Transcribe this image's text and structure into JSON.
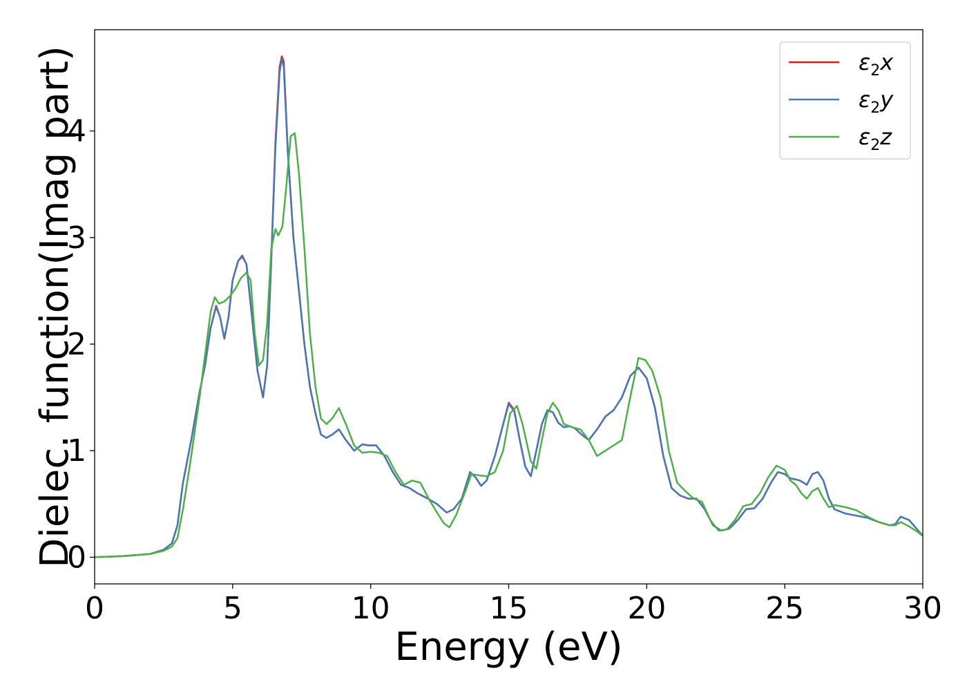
{
  "chart_data": {
    "type": "line",
    "xlabel": "Energy (eV)",
    "ylabel": "Dielec. function(Imag part)",
    "xlim": [
      0,
      30
    ],
    "ylim": [
      -0.25,
      4.95
    ],
    "xticks": [
      0,
      5,
      10,
      15,
      20,
      25,
      30
    ],
    "yticks": [
      0,
      1,
      2,
      3,
      4
    ],
    "grid": false,
    "legend_position": "top-right",
    "series": [
      {
        "name": "ε₂x",
        "legend_main": "ε",
        "legend_sub": "2",
        "legend_var": "x",
        "color": "#e41a1c",
        "x": [
          0,
          1,
          2,
          2.5,
          2.8,
          3.0,
          3.2,
          3.5,
          3.8,
          4.0,
          4.2,
          4.4,
          4.55,
          4.7,
          4.85,
          5.0,
          5.2,
          5.35,
          5.5,
          5.7,
          5.9,
          6.1,
          6.25,
          6.4,
          6.55,
          6.7,
          6.78,
          6.85,
          7.0,
          7.2,
          7.4,
          7.6,
          7.8,
          8.0,
          8.2,
          8.4,
          8.6,
          8.85,
          9.1,
          9.4,
          9.7,
          9.9,
          10.2,
          10.5,
          10.8,
          11.1,
          11.4,
          11.7,
          12.0,
          12.4,
          12.75,
          13.0,
          13.3,
          13.6,
          13.8,
          14.0,
          14.2,
          14.5,
          14.75,
          15.0,
          15.2,
          15.4,
          15.6,
          15.8,
          16.0,
          16.2,
          16.4,
          16.6,
          16.8,
          17.0,
          17.2,
          17.4,
          17.6,
          17.9,
          18.2,
          18.5,
          18.8,
          19.1,
          19.4,
          19.7,
          20.0,
          20.3,
          20.6,
          20.9,
          21.2,
          21.5,
          21.8,
          22.1,
          22.4,
          22.7,
          23.0,
          23.3,
          23.6,
          23.9,
          24.2,
          24.5,
          24.75,
          25.0,
          25.2,
          25.4,
          25.55,
          25.8,
          26.0,
          26.2,
          26.4,
          26.6,
          26.8,
          27.2,
          27.6,
          28.0,
          28.4,
          28.8,
          29.0,
          29.2,
          29.5,
          29.8,
          30.0
        ],
        "values": [
          0.0,
          0.01,
          0.03,
          0.07,
          0.13,
          0.3,
          0.7,
          1.1,
          1.55,
          1.8,
          2.15,
          2.36,
          2.25,
          2.05,
          2.25,
          2.6,
          2.78,
          2.83,
          2.75,
          2.25,
          1.75,
          1.5,
          1.8,
          2.8,
          3.9,
          4.6,
          4.7,
          4.65,
          3.8,
          3.0,
          2.5,
          2.0,
          1.6,
          1.35,
          1.15,
          1.12,
          1.15,
          1.2,
          1.1,
          1.0,
          1.06,
          1.05,
          1.05,
          0.95,
          0.8,
          0.68,
          0.65,
          0.6,
          0.56,
          0.5,
          0.42,
          0.45,
          0.55,
          0.8,
          0.75,
          0.67,
          0.72,
          0.95,
          1.2,
          1.45,
          1.38,
          1.1,
          0.85,
          0.76,
          1.0,
          1.25,
          1.38,
          1.36,
          1.26,
          1.22,
          1.23,
          1.21,
          1.16,
          1.1,
          1.2,
          1.32,
          1.38,
          1.5,
          1.7,
          1.78,
          1.68,
          1.4,
          0.95,
          0.65,
          0.58,
          0.55,
          0.55,
          0.45,
          0.3,
          0.25,
          0.27,
          0.35,
          0.45,
          0.46,
          0.55,
          0.7,
          0.8,
          0.78,
          0.74,
          0.73,
          0.72,
          0.68,
          0.78,
          0.8,
          0.72,
          0.55,
          0.45,
          0.41,
          0.39,
          0.37,
          0.33,
          0.3,
          0.31,
          0.38,
          0.35,
          0.26,
          0.2
        ]
      },
      {
        "name": "ε₂y",
        "legend_main": "ε",
        "legend_sub": "2",
        "legend_var": "y",
        "color": "#4479b3",
        "x": [
          0,
          1,
          2,
          2.5,
          2.8,
          3.0,
          3.2,
          3.5,
          3.8,
          4.0,
          4.2,
          4.4,
          4.55,
          4.7,
          4.85,
          5.0,
          5.2,
          5.35,
          5.5,
          5.7,
          5.9,
          6.1,
          6.25,
          6.4,
          6.55,
          6.7,
          6.78,
          6.85,
          7.0,
          7.2,
          7.4,
          7.6,
          7.8,
          8.0,
          8.2,
          8.4,
          8.6,
          8.85,
          9.1,
          9.4,
          9.7,
          9.9,
          10.2,
          10.5,
          10.8,
          11.1,
          11.4,
          11.7,
          12.0,
          12.4,
          12.75,
          13.0,
          13.3,
          13.6,
          13.8,
          14.0,
          14.2,
          14.5,
          14.75,
          15.0,
          15.2,
          15.4,
          15.6,
          15.8,
          16.0,
          16.2,
          16.4,
          16.6,
          16.8,
          17.0,
          17.2,
          17.4,
          17.6,
          17.9,
          18.2,
          18.5,
          18.8,
          19.1,
          19.4,
          19.7,
          20.0,
          20.3,
          20.6,
          20.9,
          21.2,
          21.5,
          21.8,
          22.1,
          22.4,
          22.7,
          23.0,
          23.3,
          23.6,
          23.9,
          24.2,
          24.5,
          24.75,
          25.0,
          25.2,
          25.4,
          25.55,
          25.8,
          26.0,
          26.2,
          26.4,
          26.6,
          26.8,
          27.2,
          27.6,
          28.0,
          28.4,
          28.8,
          29.0,
          29.2,
          29.5,
          29.8,
          30.0
        ],
        "values": [
          0.0,
          0.01,
          0.03,
          0.07,
          0.13,
          0.3,
          0.7,
          1.1,
          1.55,
          1.8,
          2.15,
          2.35,
          2.25,
          2.05,
          2.25,
          2.6,
          2.78,
          2.82,
          2.75,
          2.25,
          1.75,
          1.5,
          1.8,
          2.8,
          3.85,
          4.55,
          4.68,
          4.6,
          3.78,
          3.0,
          2.5,
          2.0,
          1.6,
          1.35,
          1.15,
          1.12,
          1.15,
          1.2,
          1.1,
          1.0,
          1.06,
          1.05,
          1.05,
          0.95,
          0.8,
          0.68,
          0.65,
          0.6,
          0.56,
          0.5,
          0.42,
          0.45,
          0.55,
          0.8,
          0.75,
          0.67,
          0.72,
          0.95,
          1.2,
          1.44,
          1.37,
          1.1,
          0.85,
          0.76,
          1.0,
          1.25,
          1.38,
          1.36,
          1.26,
          1.22,
          1.23,
          1.21,
          1.16,
          1.1,
          1.2,
          1.32,
          1.38,
          1.5,
          1.7,
          1.78,
          1.68,
          1.4,
          0.95,
          0.65,
          0.58,
          0.55,
          0.55,
          0.45,
          0.3,
          0.25,
          0.27,
          0.35,
          0.45,
          0.46,
          0.55,
          0.7,
          0.8,
          0.78,
          0.74,
          0.73,
          0.72,
          0.68,
          0.78,
          0.8,
          0.72,
          0.55,
          0.45,
          0.41,
          0.39,
          0.37,
          0.33,
          0.3,
          0.31,
          0.38,
          0.35,
          0.26,
          0.2
        ]
      },
      {
        "name": "ε₂z",
        "legend_main": "ε",
        "legend_sub": "2",
        "legend_var": "z",
        "color": "#4daf4a",
        "x": [
          0,
          1,
          2,
          2.5,
          2.8,
          3.0,
          3.2,
          3.5,
          3.8,
          4.0,
          4.2,
          4.35,
          4.5,
          4.7,
          4.9,
          5.1,
          5.3,
          5.5,
          5.65,
          5.8,
          5.95,
          6.1,
          6.25,
          6.4,
          6.55,
          6.65,
          6.8,
          6.95,
          7.1,
          7.25,
          7.4,
          7.6,
          7.8,
          8.0,
          8.2,
          8.4,
          8.6,
          8.85,
          9.1,
          9.4,
          9.7,
          10.0,
          10.3,
          10.6,
          10.9,
          11.2,
          11.5,
          11.8,
          12.1,
          12.4,
          12.65,
          12.85,
          13.1,
          13.4,
          13.65,
          13.9,
          14.2,
          14.5,
          14.8,
          15.05,
          15.3,
          15.5,
          15.8,
          16.0,
          16.2,
          16.4,
          16.6,
          16.8,
          17.0,
          17.3,
          17.6,
          17.9,
          18.2,
          18.5,
          18.8,
          19.1,
          19.4,
          19.7,
          19.95,
          20.2,
          20.5,
          20.8,
          21.1,
          21.4,
          21.7,
          22.0,
          22.3,
          22.6,
          22.9,
          23.2,
          23.5,
          23.8,
          24.1,
          24.4,
          24.7,
          25.0,
          25.2,
          25.4,
          25.6,
          25.8,
          26.0,
          26.2,
          26.4,
          26.6,
          26.8,
          27.2,
          27.6,
          28.0,
          28.4,
          28.8,
          29.0,
          29.2,
          29.5,
          29.8,
          30.0
        ],
        "values": [
          0.0,
          0.01,
          0.03,
          0.06,
          0.1,
          0.18,
          0.45,
          0.95,
          1.5,
          1.9,
          2.3,
          2.44,
          2.38,
          2.4,
          2.45,
          2.52,
          2.62,
          2.67,
          2.6,
          2.1,
          1.8,
          1.85,
          2.2,
          2.9,
          3.08,
          3.02,
          3.1,
          3.5,
          3.95,
          3.98,
          3.6,
          2.9,
          2.1,
          1.6,
          1.3,
          1.25,
          1.3,
          1.4,
          1.25,
          1.05,
          0.98,
          0.99,
          0.98,
          0.95,
          0.8,
          0.68,
          0.72,
          0.7,
          0.55,
          0.42,
          0.32,
          0.28,
          0.4,
          0.6,
          0.78,
          0.77,
          0.76,
          0.8,
          1.0,
          1.35,
          1.42,
          1.25,
          0.9,
          0.83,
          1.1,
          1.35,
          1.45,
          1.38,
          1.25,
          1.22,
          1.2,
          1.1,
          0.95,
          1.0,
          1.05,
          1.1,
          1.5,
          1.87,
          1.85,
          1.75,
          1.5,
          1.0,
          0.7,
          0.62,
          0.55,
          0.52,
          0.35,
          0.25,
          0.26,
          0.35,
          0.48,
          0.5,
          0.6,
          0.75,
          0.86,
          0.82,
          0.72,
          0.68,
          0.6,
          0.55,
          0.62,
          0.65,
          0.55,
          0.47,
          0.49,
          0.47,
          0.44,
          0.38,
          0.33,
          0.3,
          0.3,
          0.33,
          0.29,
          0.24,
          0.2
        ]
      }
    ]
  }
}
